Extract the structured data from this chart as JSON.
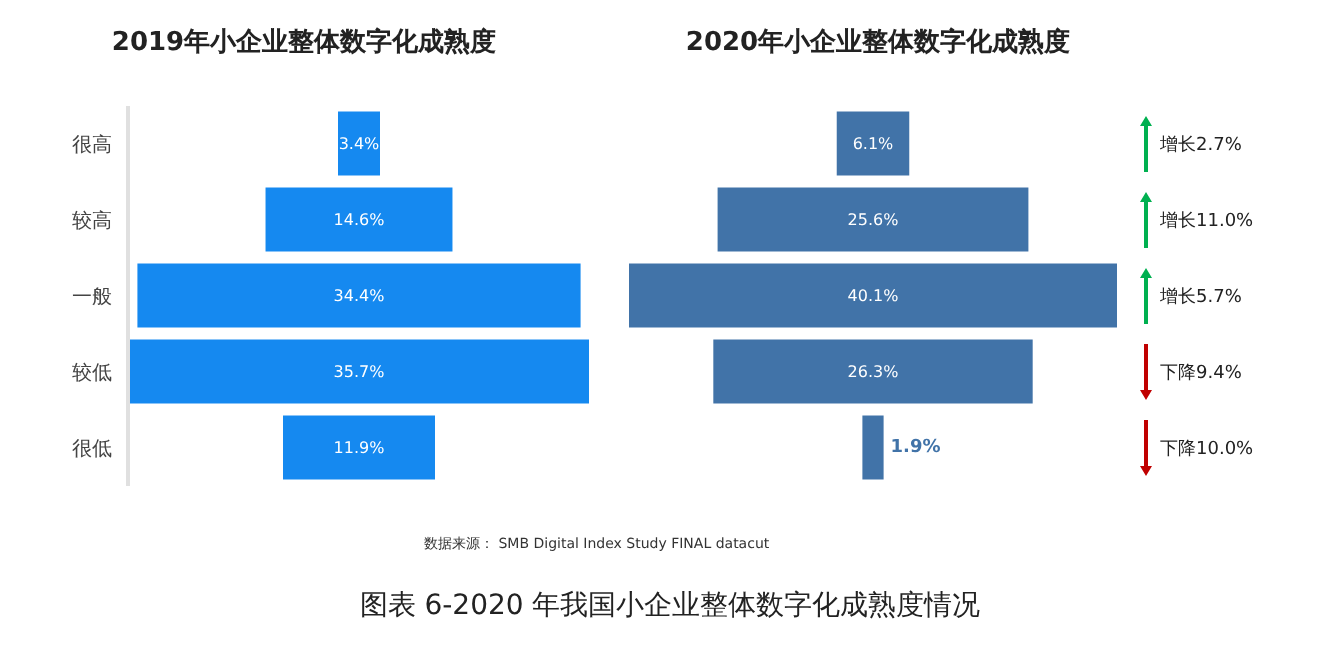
{
  "chart_data": [
    {
      "type": "other",
      "title": "2019年小企业整体数字化成熟度",
      "categories": [
        "很高",
        "较高",
        "一般",
        "较低",
        "很低"
      ],
      "values": [
        3.4,
        14.6,
        34.4,
        35.7,
        11.9
      ],
      "color": "#1589f0",
      "value_labels": [
        "3.4%",
        "14.6%",
        "34.4%",
        "35.7%",
        "11.9%"
      ]
    },
    {
      "type": "other",
      "title": "2020年小企业整体数字化成熟度",
      "categories": [
        null,
        null,
        null,
        null,
        null
      ],
      "values": [
        6.1,
        25.6,
        40.1,
        26.3,
        1.9
      ],
      "color": "#4173a8",
      "value_labels": [
        "6.1%",
        "25.6%",
        "40.1%",
        "26.3%",
        "1.9%"
      ],
      "annotations": [
        "增长2.7%",
        "增长11.0%",
        "增长5.7%",
        "下降9.4%",
        "下降10.0%",
        "数据来源： SMB Digital Index Study FINAL datacut",
        "图表 6-2020 年我国小企业整体数字化成熟度情况"
      ]
    }
  ]
}
